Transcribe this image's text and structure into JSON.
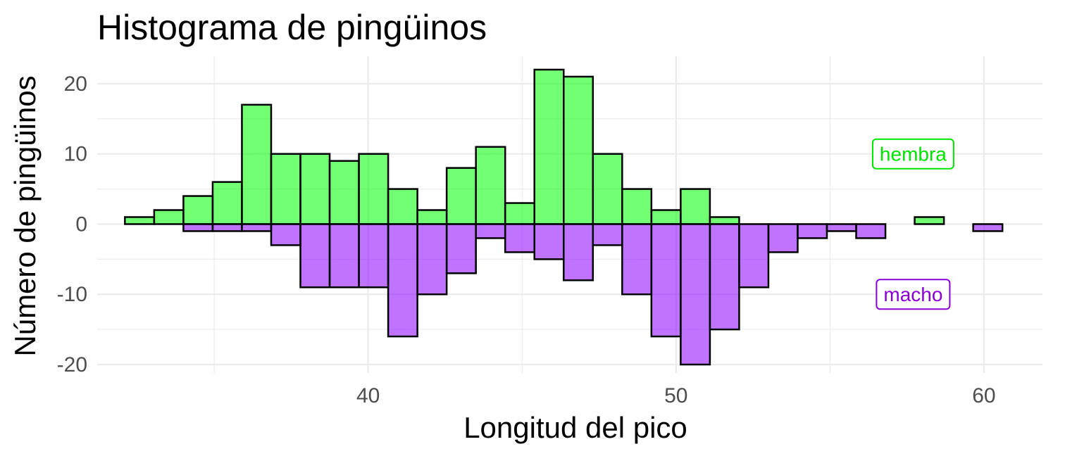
{
  "chart_data": {
    "type": "bar",
    "title": "Histograma de pingüinos",
    "xlabel": "Longitud del pico",
    "ylabel": "Número de pingüinos",
    "xlim": [
      31.2,
      61.9
    ],
    "ylim": [
      -21.2,
      23.9
    ],
    "bin_width": 0.95,
    "bin_start": 32.1,
    "x_ticks": [
      40,
      50,
      60
    ],
    "y_ticks": [
      20,
      10,
      0,
      -10,
      -20
    ],
    "grid": true,
    "series": [
      {
        "name": "hembra",
        "color": "#00FF00",
        "values": [
          1,
          2,
          4,
          6,
          17,
          10,
          10,
          9,
          10,
          5,
          2,
          8,
          11,
          3,
          22,
          21,
          10,
          5,
          2,
          5,
          1,
          0,
          0,
          0,
          0,
          0,
          0,
          1,
          0,
          0
        ]
      },
      {
        "name": "macho",
        "color": "#8B00FF",
        "values": [
          0,
          0,
          -1,
          -1,
          -1,
          -3,
          -9,
          -9,
          -9,
          -16,
          -10,
          -7,
          -2,
          -4,
          -5,
          -8,
          -3,
          -10,
          -16,
          -20,
          -15,
          -9,
          -4,
          -2,
          -1,
          -2,
          0,
          0,
          0,
          -1
        ]
      }
    ],
    "annotations": [
      {
        "text": "hembra",
        "x": 57.7,
        "y": 10,
        "color": "#00E600"
      },
      {
        "text": "macho",
        "x": 57.7,
        "y": -10,
        "color": "#8B00D6"
      }
    ]
  }
}
